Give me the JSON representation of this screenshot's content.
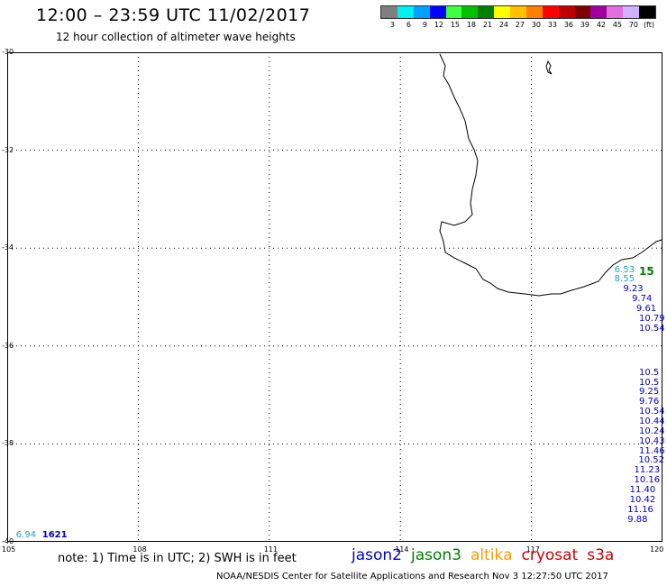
{
  "header": {
    "title": "12:00 – 23:59 UTC 11/02/2017",
    "subtitle": "12 hour collection of altimeter wave heights"
  },
  "legend": {
    "unit": "(ft)",
    "colors": [
      "#7f7f7f",
      "#00f0f0",
      "#00a0ff",
      "#0000ff",
      "#40ff40",
      "#00c000",
      "#008000",
      "#ffff00",
      "#ffc000",
      "#ff8000",
      "#ff0000",
      "#c00000",
      "#800000",
      "#a000a0",
      "#e070e0",
      "#d0b0ff",
      "#000000"
    ],
    "labels": [
      "3",
      "6",
      "9",
      "12",
      "15",
      "18",
      "21",
      "24",
      "27",
      "30",
      "33",
      "36",
      "39",
      "42",
      "45",
      "70"
    ]
  },
  "map": {
    "lat_ticks": [
      "-30",
      "-32",
      "-34",
      "-36",
      "-38",
      "-40"
    ],
    "lon_ticks": [
      "105",
      "108",
      "111",
      "114",
      "117",
      "120"
    ],
    "grid": true
  },
  "observations": [
    {
      "value": "6.94",
      "lon": 105.2,
      "lat": -39.87,
      "sat": "jason2"
    },
    {
      "value": "1621",
      "lon": 105.8,
      "lat": -39.87,
      "sat": "jason2"
    },
    {
      "value": "6.53",
      "lon": 118.9,
      "lat": -34.45,
      "sat": "jason2"
    },
    {
      "value": "15",
      "lon": 119.6,
      "lat": -34.45,
      "sat": "jason3"
    },
    {
      "value": "8.55",
      "lon": 118.9,
      "lat": -34.65,
      "sat": "jason2"
    },
    {
      "value": "9.23",
      "lon": 119.1,
      "lat": -34.85,
      "sat": "jason2"
    },
    {
      "value": "9.74",
      "lon": 119.3,
      "lat": -35.05,
      "sat": "jason2"
    },
    {
      "value": "9.61",
      "lon": 119.4,
      "lat": -35.25,
      "sat": "jason2"
    },
    {
      "value": "10.79",
      "lon": 119.5,
      "lat": -35.45,
      "sat": "jason2"
    },
    {
      "value": "10.54",
      "lon": 119.6,
      "lat": -35.65,
      "sat": "jason2"
    },
    {
      "value": "10.5",
      "lon": 119.75,
      "lat": -36.55,
      "sat": "jason2"
    },
    {
      "value": "10.5",
      "lon": 119.75,
      "lat": -36.75,
      "sat": "jason2"
    },
    {
      "value": "9.25",
      "lon": 119.75,
      "lat": -36.95,
      "sat": "jason2"
    },
    {
      "value": "9.76",
      "lon": 119.75,
      "lat": -37.15,
      "sat": "jason2"
    },
    {
      "value": "10.54",
      "lon": 119.7,
      "lat": -37.35,
      "sat": "jason2"
    },
    {
      "value": "10.44",
      "lon": 119.6,
      "lat": -37.55,
      "sat": "jason2"
    },
    {
      "value": "10.24",
      "lon": 119.6,
      "lat": -37.75,
      "sat": "jason2"
    },
    {
      "value": "10.43",
      "lon": 119.5,
      "lat": -37.95,
      "sat": "jason2"
    },
    {
      "value": "11.46",
      "lon": 119.5,
      "lat": -38.15,
      "sat": "jason2"
    },
    {
      "value": "10.52",
      "lon": 119.45,
      "lat": -38.35,
      "sat": "jason2"
    },
    {
      "value": "11.23",
      "lon": 119.35,
      "lat": -38.55,
      "sat": "jason2"
    },
    {
      "value": "10.16",
      "lon": 119.35,
      "lat": -38.75,
      "sat": "jason2"
    },
    {
      "value": "11.40",
      "lon": 119.25,
      "lat": -38.95,
      "sat": "jason2"
    },
    {
      "value": "10.42",
      "lon": 119.25,
      "lat": -39.15,
      "sat": "jason2"
    },
    {
      "value": "11.16",
      "lon": 119.2,
      "lat": -39.35,
      "sat": "jason2"
    },
    {
      "value": "9.88",
      "lon": 119.2,
      "lat": -39.55,
      "sat": "jason2"
    }
  ],
  "footer": {
    "note": "note:  1) Time is in UTC;  2) SWH is in feet",
    "satellites": [
      {
        "name": "jason2",
        "color": "#0000cc"
      },
      {
        "name": "jason3",
        "color": "#008000"
      },
      {
        "name": "altika",
        "color": "#ff9900"
      },
      {
        "name": "cryosat",
        "color": "#cc0000"
      },
      {
        "name": "s3a",
        "color": "#cc0000"
      }
    ],
    "credit": "NOAA/NESDIS Center for Satellite Applications and Research    Nov  3 12:27:50 UTC 2017"
  }
}
